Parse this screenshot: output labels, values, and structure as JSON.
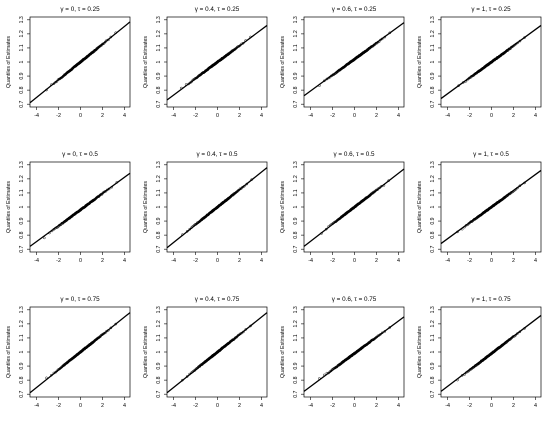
{
  "figure": {
    "ylabel": "Quantiles of Estimates",
    "x_ticks": [
      -4,
      -2,
      0,
      2,
      4
    ],
    "y_ticks": [
      0.7,
      0.8,
      0.9,
      1.0,
      1.1,
      1.2,
      1.3
    ],
    "y_tick_labels": [
      "0.7",
      "0.8",
      "0.9",
      "1",
      "1.1",
      "1.2",
      "1.3"
    ]
  },
  "chart_data": [
    {
      "type": "scatter",
      "title": "γ = 0, τ = 0.25",
      "xlim": [
        -4.6,
        4.5
      ],
      "ylim": [
        0.68,
        1.32
      ],
      "points_range": [
        -3.1,
        3.2
      ],
      "intercept": 1.0,
      "slope": 0.063,
      "ref_line": [
        [
          -4.6,
          0.71
        ],
        [
          4.5,
          1.285
        ]
      ]
    },
    {
      "type": "scatter",
      "title": "γ = 0.4, τ = 0.25",
      "xlim": [
        -4.6,
        4.5
      ],
      "ylim": [
        0.68,
        1.32
      ],
      "points_range": [
        -3.3,
        3.0
      ],
      "intercept": 1.0,
      "slope": 0.058,
      "ref_line": [
        [
          -4.6,
          0.73
        ],
        [
          4.5,
          1.26
        ]
      ]
    },
    {
      "type": "scatter",
      "title": "γ = 0.6, τ = 0.25",
      "xlim": [
        -4.6,
        4.5
      ],
      "ylim": [
        0.68,
        1.32
      ],
      "points_range": [
        -3.2,
        3.2
      ],
      "intercept": 1.02,
      "slope": 0.057,
      "ref_line": [
        [
          -4.6,
          0.76
        ],
        [
          4.5,
          1.28
        ]
      ]
    },
    {
      "type": "scatter",
      "title": "γ = 1, τ = 0.25",
      "xlim": [
        -4.6,
        4.5
      ],
      "ylim": [
        0.68,
        1.32
      ],
      "points_range": [
        -3.0,
        3.0
      ],
      "intercept": 1.0,
      "slope": 0.057,
      "ref_line": [
        [
          -4.6,
          0.74
        ],
        [
          4.5,
          1.26
        ]
      ]
    },
    {
      "type": "scatter",
      "title": "γ = 0, τ = 0.5",
      "xlim": [
        -4.6,
        4.5
      ],
      "ylim": [
        0.68,
        1.32
      ],
      "points_range": [
        -3.3,
        3.3
      ],
      "intercept": 0.98,
      "slope": 0.058,
      "ref_line": [
        [
          -4.6,
          0.72
        ],
        [
          4.5,
          1.24
        ]
      ]
    },
    {
      "type": "scatter",
      "title": "γ = 0.4, τ = 0.5",
      "xlim": [
        -4.6,
        4.5
      ],
      "ylim": [
        0.68,
        1.32
      ],
      "points_range": [
        -3.2,
        3.1
      ],
      "intercept": 1.0,
      "slope": 0.062,
      "ref_line": [
        [
          -4.6,
          0.71
        ],
        [
          4.5,
          1.28
        ]
      ]
    },
    {
      "type": "scatter",
      "title": "γ = 0.6, τ = 0.5",
      "xlim": [
        -4.6,
        4.5
      ],
      "ylim": [
        0.68,
        1.32
      ],
      "points_range": [
        -3.0,
        3.1
      ],
      "intercept": 1.0,
      "slope": 0.06,
      "ref_line": [
        [
          -4.6,
          0.72
        ],
        [
          4.5,
          1.27
        ]
      ]
    },
    {
      "type": "scatter",
      "title": "γ = 1, τ = 0.5",
      "xlim": [
        -4.6,
        4.5
      ],
      "ylim": [
        0.68,
        1.32
      ],
      "points_range": [
        -3.1,
        3.0
      ],
      "intercept": 1.0,
      "slope": 0.057,
      "ref_line": [
        [
          -4.6,
          0.74
        ],
        [
          4.5,
          1.26
        ]
      ]
    },
    {
      "type": "scatter",
      "title": "γ = 0, τ = 0.75",
      "xlim": [
        -4.6,
        4.5
      ],
      "ylim": [
        0.68,
        1.32
      ],
      "points_range": [
        -3.1,
        3.2
      ],
      "intercept": 1.0,
      "slope": 0.062,
      "ref_line": [
        [
          -4.6,
          0.71
        ],
        [
          4.5,
          1.28
        ]
      ]
    },
    {
      "type": "scatter",
      "title": "γ = 0.4, τ = 0.75",
      "xlim": [
        -4.6,
        4.5
      ],
      "ylim": [
        0.68,
        1.32
      ],
      "points_range": [
        -3.2,
        3.0
      ],
      "intercept": 1.0,
      "slope": 0.062,
      "ref_line": [
        [
          -4.6,
          0.71
        ],
        [
          4.5,
          1.28
        ]
      ]
    },
    {
      "type": "scatter",
      "title": "γ = 0.6, τ = 0.75",
      "xlim": [
        -4.6,
        4.5
      ],
      "ylim": [
        0.68,
        1.32
      ],
      "points_range": [
        -3.2,
        3.2
      ],
      "intercept": 0.99,
      "slope": 0.058,
      "ref_line": [
        [
          -4.6,
          0.72
        ],
        [
          4.5,
          1.25
        ]
      ]
    },
    {
      "type": "scatter",
      "title": "γ = 1, τ = 0.75",
      "xlim": [
        -4.6,
        4.5
      ],
      "ylim": [
        0.68,
        1.32
      ],
      "points_range": [
        -3.1,
        3.0
      ],
      "intercept": 0.99,
      "slope": 0.06,
      "ref_line": [
        [
          -4.6,
          0.72
        ],
        [
          4.5,
          1.26
        ]
      ]
    }
  ]
}
